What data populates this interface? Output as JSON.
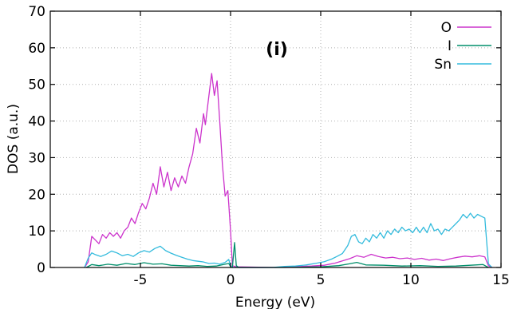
{
  "chart_data": {
    "type": "line",
    "panel_label": "(i)",
    "xlabel": "Energy (eV)",
    "ylabel": "DOS (a.u.)",
    "xlim": [
      -10,
      15
    ],
    "ylim": [
      0,
      70
    ],
    "xticks": [
      -5,
      0,
      5,
      10,
      15
    ],
    "yticks": [
      0,
      10,
      20,
      30,
      40,
      50,
      60,
      70
    ],
    "grid": true,
    "legend_position": "top-right",
    "series": [
      {
        "name": "O",
        "color": "#cc33cc",
        "points": [
          [
            -8.1,
            0
          ],
          [
            -7.9,
            1.5
          ],
          [
            -7.7,
            8.5
          ],
          [
            -7.5,
            7.5
          ],
          [
            -7.3,
            6.5
          ],
          [
            -7.1,
            9.0
          ],
          [
            -6.9,
            8.0
          ],
          [
            -6.7,
            9.5
          ],
          [
            -6.5,
            8.5
          ],
          [
            -6.3,
            9.5
          ],
          [
            -6.1,
            8.0
          ],
          [
            -5.9,
            10.0
          ],
          [
            -5.7,
            11.0
          ],
          [
            -5.5,
            13.5
          ],
          [
            -5.3,
            12.0
          ],
          [
            -5.1,
            15.0
          ],
          [
            -4.9,
            17.5
          ],
          [
            -4.7,
            16.0
          ],
          [
            -4.5,
            19.0
          ],
          [
            -4.3,
            23.0
          ],
          [
            -4.1,
            20.0
          ],
          [
            -3.9,
            27.5
          ],
          [
            -3.7,
            22.0
          ],
          [
            -3.5,
            26.0
          ],
          [
            -3.3,
            21.0
          ],
          [
            -3.1,
            24.5
          ],
          [
            -2.9,
            22.0
          ],
          [
            -2.7,
            25.0
          ],
          [
            -2.5,
            23.0
          ],
          [
            -2.3,
            27.5
          ],
          [
            -2.1,
            31.0
          ],
          [
            -1.9,
            38.0
          ],
          [
            -1.7,
            34.0
          ],
          [
            -1.5,
            42.0
          ],
          [
            -1.4,
            39.0
          ],
          [
            -1.2,
            47.0
          ],
          [
            -1.05,
            53.0
          ],
          [
            -0.9,
            47.0
          ],
          [
            -0.75,
            51.0
          ],
          [
            -0.6,
            40.0
          ],
          [
            -0.45,
            28.0
          ],
          [
            -0.3,
            19.5
          ],
          [
            -0.15,
            21.0
          ],
          [
            0.0,
            10.0
          ],
          [
            0.1,
            0.5
          ],
          [
            0.3,
            0.2
          ],
          [
            2.5,
            0
          ],
          [
            3.5,
            0.2
          ],
          [
            4.5,
            0.4
          ],
          [
            5.2,
            0.6
          ],
          [
            5.8,
            1.2
          ],
          [
            6.2,
            1.8
          ],
          [
            6.6,
            2.4
          ],
          [
            7.0,
            3.2
          ],
          [
            7.4,
            2.8
          ],
          [
            7.8,
            3.6
          ],
          [
            8.2,
            3.0
          ],
          [
            8.6,
            2.6
          ],
          [
            9.0,
            2.8
          ],
          [
            9.4,
            2.4
          ],
          [
            9.8,
            2.6
          ],
          [
            10.2,
            2.2
          ],
          [
            10.6,
            2.5
          ],
          [
            11.0,
            2.0
          ],
          [
            11.4,
            2.3
          ],
          [
            11.8,
            1.9
          ],
          [
            12.2,
            2.4
          ],
          [
            12.6,
            2.8
          ],
          [
            13.0,
            3.1
          ],
          [
            13.4,
            2.9
          ],
          [
            13.8,
            3.2
          ],
          [
            14.1,
            2.9
          ],
          [
            14.3,
            0.5
          ],
          [
            14.5,
            0
          ]
        ]
      },
      {
        "name": "I",
        "color": "#008f6b",
        "points": [
          [
            -8.0,
            0
          ],
          [
            -7.7,
            0.8
          ],
          [
            -7.3,
            0.5
          ],
          [
            -6.8,
            0.9
          ],
          [
            -6.3,
            0.6
          ],
          [
            -5.8,
            1.1
          ],
          [
            -5.3,
            0.8
          ],
          [
            -4.8,
            1.3
          ],
          [
            -4.3,
            0.9
          ],
          [
            -3.8,
            1.0
          ],
          [
            -3.3,
            0.6
          ],
          [
            -2.8,
            0.5
          ],
          [
            -2.3,
            0.4
          ],
          [
            -1.8,
            0.5
          ],
          [
            -1.3,
            0.3
          ],
          [
            -0.8,
            0.4
          ],
          [
            -0.3,
            0.9
          ],
          [
            -0.1,
            1.1
          ],
          [
            0.0,
            0.3
          ],
          [
            0.1,
            0.0
          ],
          [
            0.22,
            6.8
          ],
          [
            0.32,
            0.5
          ],
          [
            0.45,
            0
          ],
          [
            3.0,
            0
          ],
          [
            5.0,
            0.2
          ],
          [
            6.0,
            0.5
          ],
          [
            6.6,
            1.0
          ],
          [
            7.0,
            1.4
          ],
          [
            7.5,
            0.7
          ],
          [
            8.5,
            0.6
          ],
          [
            9.5,
            0.4
          ],
          [
            10.5,
            0.5
          ],
          [
            11.5,
            0.3
          ],
          [
            12.5,
            0.4
          ],
          [
            13.3,
            0.6
          ],
          [
            14.0,
            0.8
          ],
          [
            14.3,
            0
          ]
        ]
      },
      {
        "name": "Sn",
        "color": "#33bbdd",
        "points": [
          [
            -8.1,
            0
          ],
          [
            -7.9,
            2.5
          ],
          [
            -7.7,
            4.0
          ],
          [
            -7.5,
            3.5
          ],
          [
            -7.2,
            3.0
          ],
          [
            -6.9,
            3.6
          ],
          [
            -6.6,
            4.5
          ],
          [
            -6.3,
            4.0
          ],
          [
            -6.0,
            3.2
          ],
          [
            -5.7,
            3.6
          ],
          [
            -5.4,
            3.0
          ],
          [
            -5.1,
            4.0
          ],
          [
            -4.8,
            4.6
          ],
          [
            -4.5,
            4.2
          ],
          [
            -4.2,
            5.2
          ],
          [
            -3.9,
            5.8
          ],
          [
            -3.6,
            4.6
          ],
          [
            -3.3,
            3.9
          ],
          [
            -3.0,
            3.3
          ],
          [
            -2.7,
            2.8
          ],
          [
            -2.4,
            2.3
          ],
          [
            -2.1,
            1.9
          ],
          [
            -1.8,
            1.7
          ],
          [
            -1.5,
            1.5
          ],
          [
            -1.2,
            1.1
          ],
          [
            -0.9,
            1.2
          ],
          [
            -0.6,
            0.9
          ],
          [
            -0.3,
            1.4
          ],
          [
            -0.1,
            2.2
          ],
          [
            0.0,
            0.5
          ],
          [
            0.1,
            0
          ],
          [
            2.3,
            0
          ],
          [
            3.0,
            0.3
          ],
          [
            3.6,
            0.4
          ],
          [
            4.2,
            0.7
          ],
          [
            4.8,
            1.2
          ],
          [
            5.2,
            1.6
          ],
          [
            5.6,
            2.3
          ],
          [
            5.9,
            3.0
          ],
          [
            6.2,
            3.8
          ],
          [
            6.5,
            6.0
          ],
          [
            6.7,
            8.5
          ],
          [
            6.9,
            9.0
          ],
          [
            7.1,
            7.0
          ],
          [
            7.3,
            6.5
          ],
          [
            7.5,
            8.0
          ],
          [
            7.7,
            7.0
          ],
          [
            7.9,
            9.0
          ],
          [
            8.1,
            8.0
          ],
          [
            8.3,
            9.5
          ],
          [
            8.5,
            8.0
          ],
          [
            8.7,
            10.0
          ],
          [
            8.9,
            9.0
          ],
          [
            9.1,
            10.5
          ],
          [
            9.3,
            9.5
          ],
          [
            9.5,
            11.0
          ],
          [
            9.7,
            10.0
          ],
          [
            9.9,
            10.5
          ],
          [
            10.1,
            9.5
          ],
          [
            10.3,
            11.0
          ],
          [
            10.5,
            9.5
          ],
          [
            10.7,
            11.0
          ],
          [
            10.9,
            9.5
          ],
          [
            11.1,
            12.0
          ],
          [
            11.3,
            10.0
          ],
          [
            11.5,
            10.5
          ],
          [
            11.7,
            9.0
          ],
          [
            11.9,
            10.5
          ],
          [
            12.1,
            10.0
          ],
          [
            12.3,
            11.0
          ],
          [
            12.5,
            12.0
          ],
          [
            12.7,
            13.0
          ],
          [
            12.9,
            14.5
          ],
          [
            13.1,
            13.5
          ],
          [
            13.3,
            14.8
          ],
          [
            13.5,
            13.5
          ],
          [
            13.7,
            14.5
          ],
          [
            13.9,
            14.0
          ],
          [
            14.1,
            13.5
          ],
          [
            14.3,
            1.0
          ],
          [
            14.5,
            0
          ]
        ]
      }
    ]
  }
}
